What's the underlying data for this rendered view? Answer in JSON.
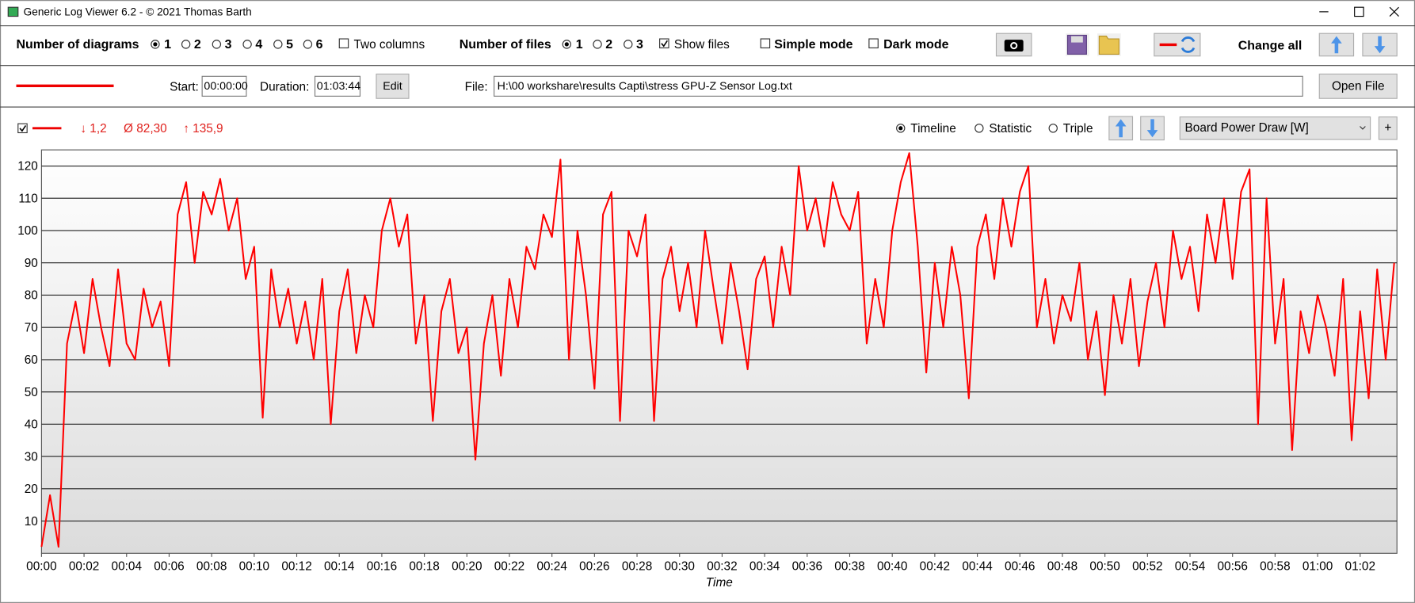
{
  "window": {
    "title": "Generic Log Viewer 6.2 - © 2021 Thomas Barth"
  },
  "toolbar": {
    "diagrams_label": "Number of diagrams",
    "diagram_options": [
      "1",
      "2",
      "3",
      "4",
      "5",
      "6"
    ],
    "two_columns": "Two columns",
    "files_label": "Number of files",
    "file_options": [
      "1",
      "2",
      "3"
    ],
    "show_files": "Show files",
    "simple_mode": "Simple mode",
    "dark_mode": "Dark mode",
    "change_all": "Change all"
  },
  "file_bar": {
    "start_label": "Start:",
    "start": "00:00:00",
    "duration_label": "Duration:",
    "duration": "01:03:44",
    "edit": "Edit",
    "file_label": "File:",
    "file": "H:\\00 workshare\\results Capti\\stress GPU-Z Sensor Log.txt",
    "open_file": "Open File"
  },
  "diagram": {
    "stat_min": "↓ 1,2",
    "stat_avg": "Ø 82,30",
    "stat_max": "↑ 135,9",
    "views": [
      "Timeline",
      "Statistic",
      "Triple"
    ],
    "sensor": "Board Power Draw [W]",
    "add": "+"
  },
  "chart_data": {
    "type": "line",
    "x_label": "Time",
    "xlim": [
      0,
      63.73
    ],
    "ylim": [
      0,
      125
    ],
    "yticks": [
      10,
      20,
      30,
      40,
      50,
      60,
      70,
      80,
      90,
      100,
      110,
      120
    ],
    "xticks": [
      {
        "value": 0,
        "label": "00:00"
      },
      {
        "value": 2,
        "label": "00:02"
      },
      {
        "value": 4,
        "label": "00:04"
      },
      {
        "value": 6,
        "label": "00:06"
      },
      {
        "value": 8,
        "label": "00:08"
      },
      {
        "value": 10,
        "label": "00:10"
      },
      {
        "value": 12,
        "label": "00:12"
      },
      {
        "value": 14,
        "label": "00:14"
      },
      {
        "value": 16,
        "label": "00:16"
      },
      {
        "value": 18,
        "label": "00:18"
      },
      {
        "value": 20,
        "label": "00:20"
      },
      {
        "value": 22,
        "label": "00:22"
      },
      {
        "value": 24,
        "label": "00:24"
      },
      {
        "value": 26,
        "label": "00:26"
      },
      {
        "value": 28,
        "label": "00:28"
      },
      {
        "value": 30,
        "label": "00:30"
      },
      {
        "value": 32,
        "label": "00:32"
      },
      {
        "value": 34,
        "label": "00:34"
      },
      {
        "value": 36,
        "label": "00:36"
      },
      {
        "value": 38,
        "label": "00:38"
      },
      {
        "value": 40,
        "label": "00:40"
      },
      {
        "value": 42,
        "label": "00:42"
      },
      {
        "value": 44,
        "label": "00:44"
      },
      {
        "value": 46,
        "label": "00:46"
      },
      {
        "value": 48,
        "label": "00:48"
      },
      {
        "value": 50,
        "label": "00:50"
      },
      {
        "value": 52,
        "label": "00:52"
      },
      {
        "value": 54,
        "label": "00:54"
      },
      {
        "value": 56,
        "label": "00:56"
      },
      {
        "value": 58,
        "label": "00:58"
      },
      {
        "value": 60,
        "label": "01:00"
      },
      {
        "value": 62,
        "label": "01:02"
      }
    ],
    "grid": true,
    "x": [
      0,
      0.4,
      0.8,
      1.2,
      1.6,
      2,
      2.4,
      2.8,
      3.2,
      3.6,
      4,
      4.4,
      4.8,
      5.2,
      5.6,
      6,
      6.4,
      6.8,
      7.2,
      7.6,
      8,
      8.4,
      8.8,
      9.2,
      9.6,
      10,
      10.4,
      10.8,
      11.2,
      11.6,
      12,
      12.4,
      12.8,
      13.2,
      13.6,
      14,
      14.4,
      14.8,
      15.2,
      15.6,
      16,
      16.4,
      16.8,
      17.2,
      17.6,
      18,
      18.4,
      18.8,
      19.2,
      19.6,
      20,
      20.4,
      20.8,
      21.2,
      21.6,
      22,
      22.4,
      22.8,
      23.2,
      23.6,
      24,
      24.4,
      24.8,
      25.2,
      25.6,
      26,
      26.4,
      26.8,
      27.2,
      27.6,
      28,
      28.4,
      28.8,
      29.2,
      29.6,
      30,
      30.4,
      30.8,
      31.2,
      31.6,
      32,
      32.4,
      32.8,
      33.2,
      33.6,
      34,
      34.4,
      34.8,
      35.2,
      35.6,
      36,
      36.4,
      36.8,
      37.2,
      37.6,
      38,
      38.4,
      38.8,
      39.2,
      39.6,
      40,
      40.4,
      40.8,
      41.2,
      41.6,
      42,
      42.4,
      42.8,
      43.2,
      43.6,
      44,
      44.4,
      44.8,
      45.2,
      45.6,
      46,
      46.4,
      46.8,
      47.2,
      47.6,
      48,
      48.4,
      48.8,
      49.2,
      49.6,
      50,
      50.4,
      50.8,
      51.2,
      51.6,
      52,
      52.4,
      52.8,
      53.2,
      53.6,
      54,
      54.4,
      54.8,
      55.2,
      55.6,
      56,
      56.4,
      56.8,
      57.2,
      57.6,
      58,
      58.4,
      58.8,
      59.2,
      59.6,
      60,
      60.4,
      60.8,
      61.2,
      61.6,
      62,
      62.4,
      62.8,
      63.2,
      63.6
    ],
    "series": [
      {
        "color": "#ff0000",
        "values": [
          2,
          18,
          2,
          65,
          78,
          62,
          85,
          70,
          58,
          88,
          65,
          60,
          82,
          70,
          78,
          58,
          105,
          115,
          90,
          112,
          105,
          116,
          100,
          110,
          85,
          95,
          42,
          88,
          70,
          82,
          65,
          78,
          60,
          85,
          40,
          75,
          88,
          62,
          80,
          70,
          100,
          110,
          95,
          105,
          65,
          80,
          41,
          75,
          85,
          62,
          70,
          29,
          65,
          80,
          55,
          85,
          70,
          95,
          88,
          105,
          98,
          122,
          60,
          100,
          80,
          51,
          105,
          112,
          41,
          100,
          92,
          105,
          41,
          85,
          95,
          75,
          90,
          70,
          100,
          82,
          65,
          90,
          75,
          57,
          85,
          92,
          70,
          95,
          80,
          120,
          100,
          110,
          95,
          115,
          105,
          100,
          112,
          65,
          85,
          70,
          100,
          115,
          124,
          95,
          56,
          90,
          70,
          95,
          80,
          48,
          95,
          105,
          85,
          110,
          95,
          112,
          120,
          70,
          85,
          65,
          80,
          72,
          90,
          60,
          75,
          49,
          80,
          65,
          85,
          58,
          78,
          90,
          70,
          100,
          85,
          95,
          75,
          105,
          90,
          110,
          85,
          112,
          119,
          40,
          110,
          65,
          85,
          32,
          75,
          62,
          80,
          70,
          55,
          85,
          35,
          75,
          48,
          88,
          60,
          90
        ]
      }
    ]
  }
}
